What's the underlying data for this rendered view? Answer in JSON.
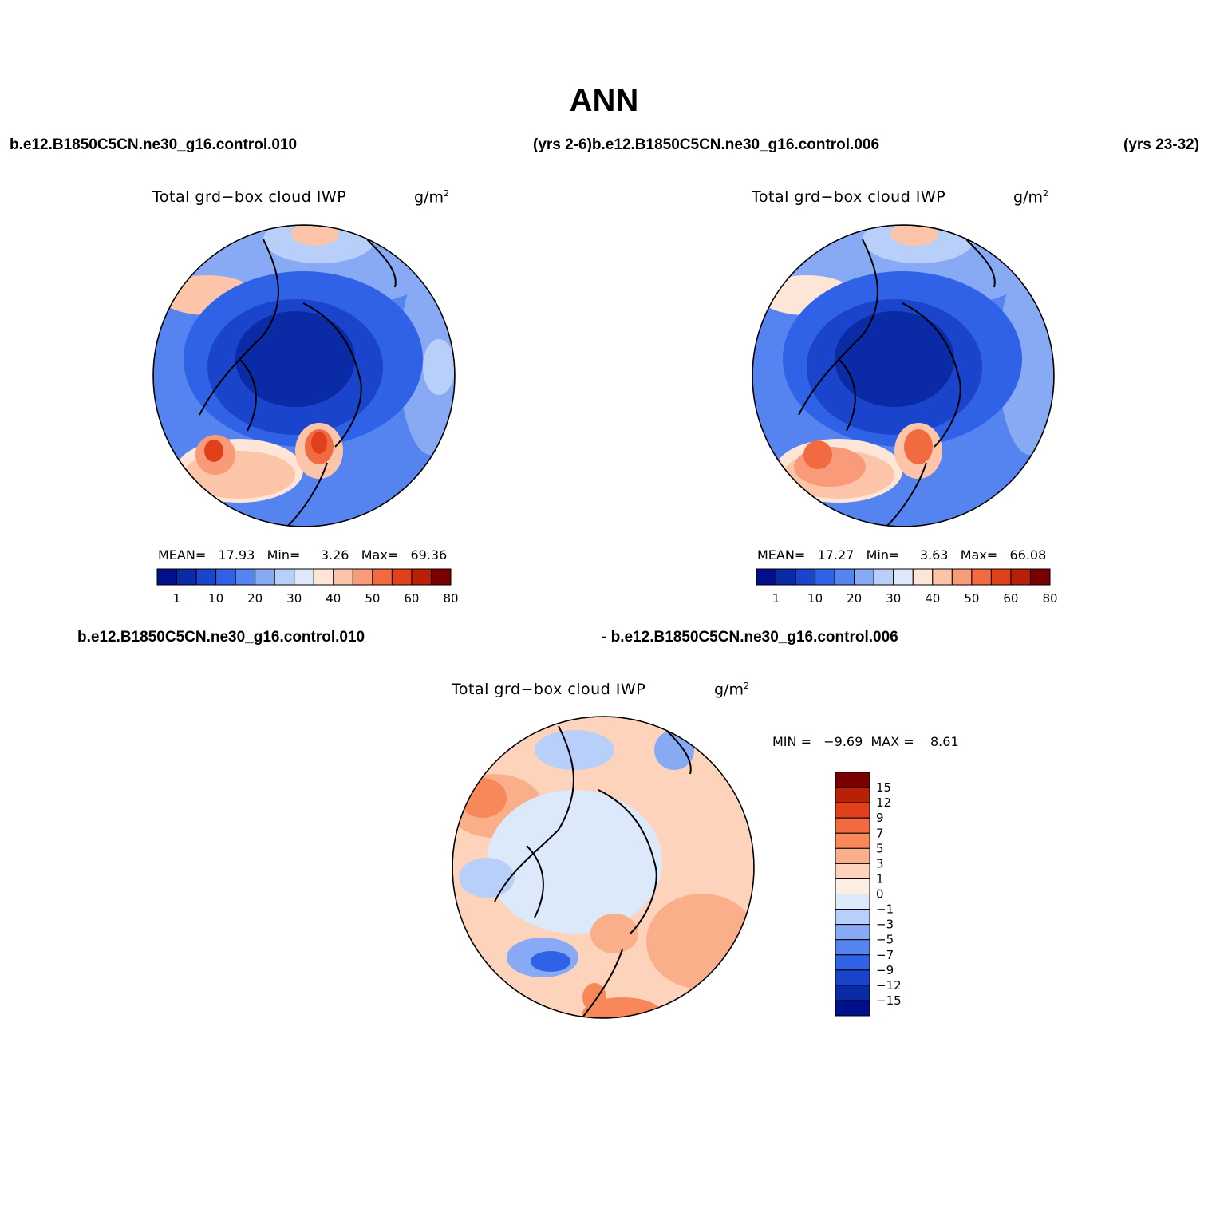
{
  "title": "ANN",
  "top_case_left": "b.e12.B1850C5CN.ne30_g16.control.010",
  "top_case_mid": "(yrs 2-6)b.e12.B1850C5CN.ne30_g16.control.006",
  "top_case_right": "(yrs 23-32)",
  "panels": [
    {
      "title": "Total grd−box cloud IWP",
      "units_base": "g/m",
      "units_exp": "2",
      "stats": {
        "mean_label": "MEAN=",
        "mean": "17.93",
        "min_label": "Min=",
        "min": "3.26",
        "max_label": "Max=",
        "max": "69.36"
      },
      "colorbar_ticks": [
        "1",
        "10",
        "20",
        "30",
        "40",
        "50",
        "60",
        "80"
      ]
    },
    {
      "title": "Total grd−box cloud IWP",
      "units_base": "g/m",
      "units_exp": "2",
      "stats": {
        "mean_label": "MEAN=",
        "mean": "17.27",
        "min_label": "Min=",
        "min": "3.63",
        "max_label": "Max=",
        "max": "66.08"
      },
      "colorbar_ticks": [
        "1",
        "10",
        "20",
        "30",
        "40",
        "50",
        "60",
        "80"
      ]
    }
  ],
  "diff": {
    "case_left": "b.e12.B1850C5CN.ne30_g16.control.010",
    "case_right": "- b.e12.B1850C5CN.ne30_g16.control.006",
    "title": "Total grd−box cloud IWP",
    "units_base": "g/m",
    "units_exp": "2",
    "minmax": "MIN =   −9.69  MAX =    8.61",
    "colorbar_ticks": [
      "15",
      "12",
      "9",
      "7",
      "5",
      "3",
      "1",
      "0",
      "−1",
      "−3",
      "−5",
      "−7",
      "−9",
      "−12",
      "−15"
    ]
  },
  "colors": {
    "abs_scale": [
      "#00108a",
      "#0a2aa6",
      "#1a44cc",
      "#2f62e6",
      "#5584f0",
      "#88aaf4",
      "#b8cffa",
      "#dde9fb",
      "#fde6d8",
      "#fcc4a8",
      "#f99a78",
      "#f26a40",
      "#e0401a",
      "#b82008",
      "#7a0000"
    ],
    "diff_scale": [
      "#7a0000",
      "#b82008",
      "#e0401a",
      "#f26a40",
      "#f8875a",
      "#fbae8a",
      "#fdd3bb",
      "#fdeee3",
      "#dce9fa",
      "#b8cffa",
      "#88aaf4",
      "#5584f0",
      "#2f62e6",
      "#1a44cc",
      "#0a2aa6",
      "#00108a"
    ]
  }
}
